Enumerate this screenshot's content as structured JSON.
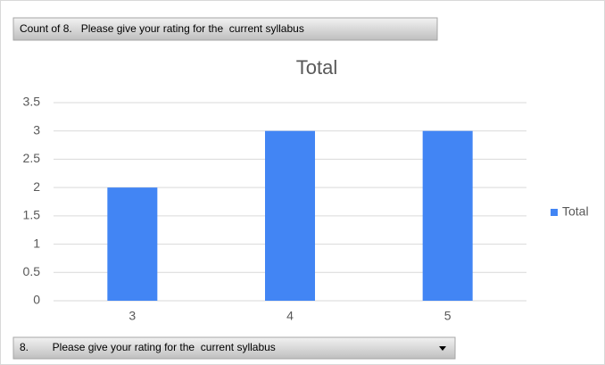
{
  "chart_data": {
    "type": "bar",
    "value_field_button": "Count of 8.   Please give your rating for the  current syllabus",
    "axis_field_button": "8.        Please give your rating for the  current syllabus",
    "title": "Total",
    "categories": [
      "3",
      "4",
      "5"
    ],
    "series": [
      {
        "name": "Total",
        "color": "#4285f4",
        "values": [
          2,
          3,
          3
        ]
      }
    ],
    "ylim": [
      0,
      3.5
    ],
    "yticks": [
      0,
      0.5,
      1,
      1.5,
      2,
      2.5,
      3,
      3.5
    ],
    "grid": true,
    "legend": "right"
  }
}
